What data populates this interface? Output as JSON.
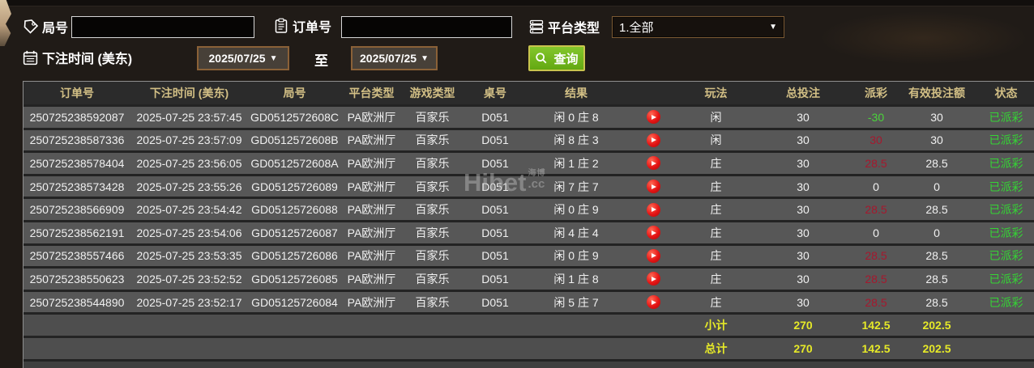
{
  "filter": {
    "round_label": "局号",
    "round_value": "",
    "order_label": "订单号",
    "order_value": "",
    "platform_label": "平台类型",
    "platform_value": "1.全部",
    "time_label": "下注时间 (美东)",
    "date_from": "2025/07/25",
    "to_label": "至",
    "date_to": "2025/07/25",
    "query_label": "查询"
  },
  "watermark": {
    "brand": "Hibet",
    "cn": "海博",
    "suffix": ".cc"
  },
  "colors": {
    "header_gold": "#d2bf85",
    "row_gray": "#575757",
    "payout_win_red": "#a6182e",
    "payout_loss_green": "#4ad43a",
    "status_green": "#35d435",
    "summary_yellow": "#e6e928",
    "query_button_green": "#6fb41d",
    "replay_red": "#e51414"
  },
  "table": {
    "header_labels": [
      "订单号",
      "下注时间 (美东)",
      "局号",
      "平台类型",
      "游戏类型",
      "桌号",
      "结果",
      "",
      "玩法",
      "总投注",
      "派彩",
      "有效投注额",
      "状态"
    ],
    "rows": [
      {
        "order_id": "250725238592087",
        "bet_time": "2025-07-25 23:57:45",
        "round_id": "GD0512572608C",
        "platform": "PA欧洲厅",
        "game_type": "百家乐",
        "table_no": "D051",
        "result": "闲 0 庄 8",
        "play_type": "闲",
        "total_bet": "30",
        "payout": "-30",
        "payout_color": "green",
        "valid_bet": "30",
        "status": "已派彩"
      },
      {
        "order_id": "250725238587336",
        "bet_time": "2025-07-25 23:57:09",
        "round_id": "GD0512572608B",
        "platform": "PA欧洲厅",
        "game_type": "百家乐",
        "table_no": "D051",
        "result": "闲 8 庄 3",
        "play_type": "闲",
        "total_bet": "30",
        "payout": "30",
        "payout_color": "red",
        "valid_bet": "30",
        "status": "已派彩"
      },
      {
        "order_id": "250725238578404",
        "bet_time": "2025-07-25 23:56:05",
        "round_id": "GD0512572608A",
        "platform": "PA欧洲厅",
        "game_type": "百家乐",
        "table_no": "D051",
        "result": "闲 1 庄 2",
        "play_type": "庄",
        "total_bet": "30",
        "payout": "28.5",
        "payout_color": "red",
        "valid_bet": "28.5",
        "status": "已派彩"
      },
      {
        "order_id": "250725238573428",
        "bet_time": "2025-07-25 23:55:26",
        "round_id": "GD05125726089",
        "platform": "PA欧洲厅",
        "game_type": "百家乐",
        "table_no": "D051",
        "result": "闲 7 庄 7",
        "play_type": "庄",
        "total_bet": "30",
        "payout": "0",
        "payout_color": "neutral",
        "valid_bet": "0",
        "status": "已派彩"
      },
      {
        "order_id": "250725238566909",
        "bet_time": "2025-07-25 23:54:42",
        "round_id": "GD05125726088",
        "platform": "PA欧洲厅",
        "game_type": "百家乐",
        "table_no": "D051",
        "result": "闲 0 庄 9",
        "play_type": "庄",
        "total_bet": "30",
        "payout": "28.5",
        "payout_color": "red",
        "valid_bet": "28.5",
        "status": "已派彩"
      },
      {
        "order_id": "250725238562191",
        "bet_time": "2025-07-25 23:54:06",
        "round_id": "GD05125726087",
        "platform": "PA欧洲厅",
        "game_type": "百家乐",
        "table_no": "D051",
        "result": "闲 4 庄 4",
        "play_type": "庄",
        "total_bet": "30",
        "payout": "0",
        "payout_color": "neutral",
        "valid_bet": "0",
        "status": "已派彩"
      },
      {
        "order_id": "250725238557466",
        "bet_time": "2025-07-25 23:53:35",
        "round_id": "GD05125726086",
        "platform": "PA欧洲厅",
        "game_type": "百家乐",
        "table_no": "D051",
        "result": "闲 0 庄 9",
        "play_type": "庄",
        "total_bet": "30",
        "payout": "28.5",
        "payout_color": "red",
        "valid_bet": "28.5",
        "status": "已派彩"
      },
      {
        "order_id": "250725238550623",
        "bet_time": "2025-07-25 23:52:52",
        "round_id": "GD05125726085",
        "platform": "PA欧洲厅",
        "game_type": "百家乐",
        "table_no": "D051",
        "result": "闲 1 庄 8",
        "play_type": "庄",
        "total_bet": "30",
        "payout": "28.5",
        "payout_color": "red",
        "valid_bet": "28.5",
        "status": "已派彩"
      },
      {
        "order_id": "250725238544890",
        "bet_time": "2025-07-25 23:52:17",
        "round_id": "GD05125726084",
        "platform": "PA欧洲厅",
        "game_type": "百家乐",
        "table_no": "D051",
        "result": "闲 5 庄 7",
        "play_type": "庄",
        "total_bet": "30",
        "payout": "28.5",
        "payout_color": "red",
        "valid_bet": "28.5",
        "status": "已派彩"
      }
    ],
    "summary_rows": [
      {
        "label": "小计",
        "total_bet": "270",
        "payout": "142.5",
        "valid_bet": "202.5"
      },
      {
        "label": "总计",
        "total_bet": "270",
        "payout": "142.5",
        "valid_bet": "202.5"
      }
    ]
  }
}
